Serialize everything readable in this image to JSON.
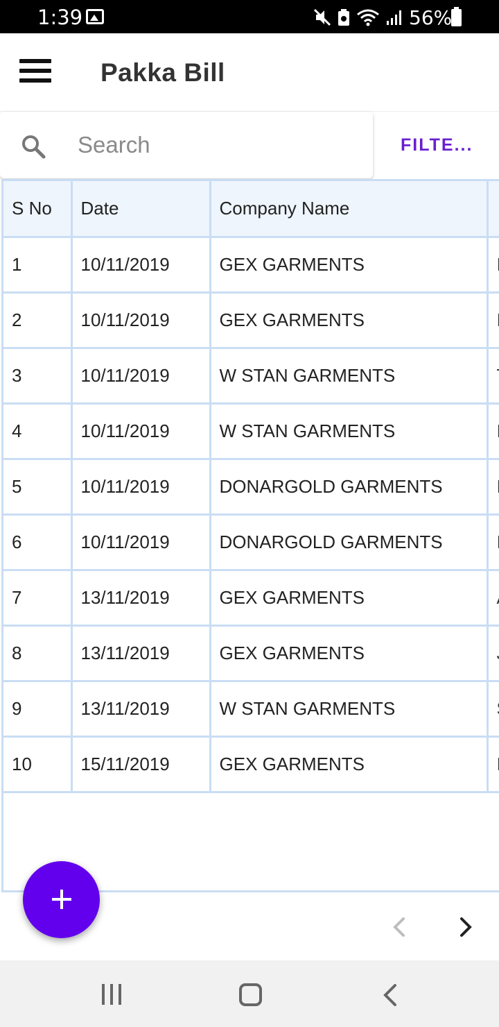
{
  "status_bar": {
    "time": "1:39",
    "battery": "56%",
    "icons": [
      "gallery-icon",
      "mute-icon",
      "battery-saver-icon",
      "wifi-icon",
      "signal-icon",
      "battery-icon"
    ]
  },
  "app_bar": {
    "title": "Pakka Bill",
    "menu_icon": "menu-icon"
  },
  "search": {
    "placeholder": "Search",
    "value": "",
    "filter_label": "FILTE..."
  },
  "table": {
    "columns": [
      "S No",
      "Date",
      "Company Name",
      ""
    ],
    "rows": [
      [
        "1",
        "10/11/2019",
        "GEX GARMENTS",
        "I"
      ],
      [
        "2",
        "10/11/2019",
        "GEX GARMENTS",
        "I"
      ],
      [
        "3",
        "10/11/2019",
        "W STAN GARMENTS",
        "T"
      ],
      [
        "4",
        "10/11/2019",
        "W STAN GARMENTS",
        "I"
      ],
      [
        "5",
        "10/11/2019",
        "DONARGOLD GARMENTS",
        "I"
      ],
      [
        "6",
        "10/11/2019",
        "DONARGOLD GARMENTS",
        "I"
      ],
      [
        "7",
        "13/11/2019",
        "GEX GARMENTS",
        "A"
      ],
      [
        "8",
        "13/11/2019",
        "GEX GARMENTS",
        "J"
      ],
      [
        "9",
        "13/11/2019",
        "W STAN GARMENTS",
        "S"
      ],
      [
        "10",
        "15/11/2019",
        "GEX GARMENTS",
        "I"
      ]
    ]
  },
  "fab": {
    "icon": "plus-icon"
  },
  "pagination": {
    "prev_icon": "chevron-left-icon",
    "next_icon": "chevron-right-icon"
  },
  "nav_bar": {
    "icons": [
      "recent-apps-icon",
      "home-icon",
      "back-icon"
    ]
  },
  "colors": {
    "accent": "#6200ee",
    "filter_text": "#6a1fd0",
    "table_border": "#c9ddf4",
    "header_bg": "#eef5fd"
  }
}
